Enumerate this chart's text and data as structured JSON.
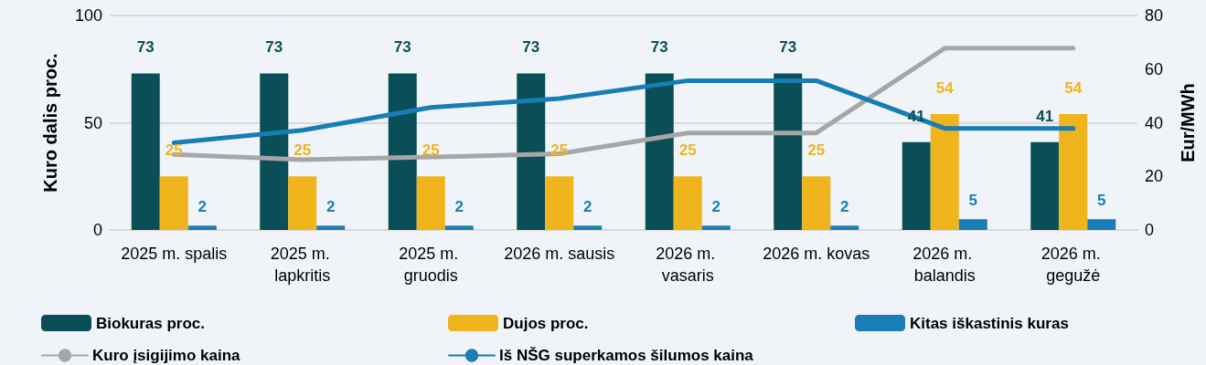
{
  "chart_data": {
    "type": "bar",
    "ylabel": "Kuro dalis proc.",
    "y2label": "Eur/MWh",
    "categories": [
      "2025 m. spalis",
      "2025 m. lapkritis",
      "2025 m. gruodis",
      "2026 m. sausis",
      "2026 m. vasaris",
      "2026 m. kovas",
      "2026 m. balandis",
      "2026 m. gegužė"
    ],
    "series": [
      {
        "name": "Biokuras proc.",
        "color": "#0a4f57",
        "values": [
          73,
          73,
          73,
          73,
          73,
          73,
          41,
          41
        ],
        "value_labels": [
          "73",
          "73",
          "73",
          "73",
          "73",
          "73",
          "41",
          "41"
        ]
      },
      {
        "name": "Dujos proc.",
        "color": "#f0b41c",
        "values": [
          25,
          25,
          25,
          25,
          25,
          25,
          54,
          54
        ],
        "value_labels": [
          "25",
          "25",
          "25",
          "25",
          "25",
          "25",
          "54",
          "54"
        ]
      },
      {
        "name": "Kitas iškastinis kuras",
        "color": "#1a7db5",
        "values": [
          2,
          2,
          2,
          2,
          2,
          2,
          5,
          5
        ],
        "value_labels": [
          "2",
          "2",
          "2",
          "2",
          "2",
          "2",
          "5",
          "5"
        ]
      },
      {
        "name": "Kuro įsigijimo kaina",
        "type": "line",
        "axis": "y2",
        "color": "#a6a6a6",
        "values": [
          28.2,
          26.2,
          27.2,
          28.4,
          36.2,
          36.2,
          67.8,
          67.8
        ]
      },
      {
        "name": "Iš NŠG superkamos šilumos kaina",
        "type": "line",
        "axis": "y2",
        "color": "#177db5",
        "values": [
          32.5,
          37.2,
          45.7,
          49,
          55.7,
          55.7,
          37.9,
          37.9
        ]
      }
    ],
    "ylim": [
      0,
      100
    ],
    "yticks": [
      0,
      50,
      100
    ],
    "y2lim": [
      0,
      80
    ],
    "y2ticks": [
      0,
      20,
      40,
      60,
      80
    ],
    "grid": "y",
    "legend": "bottom",
    "marker": "none",
    "line_style": "solid"
  }
}
